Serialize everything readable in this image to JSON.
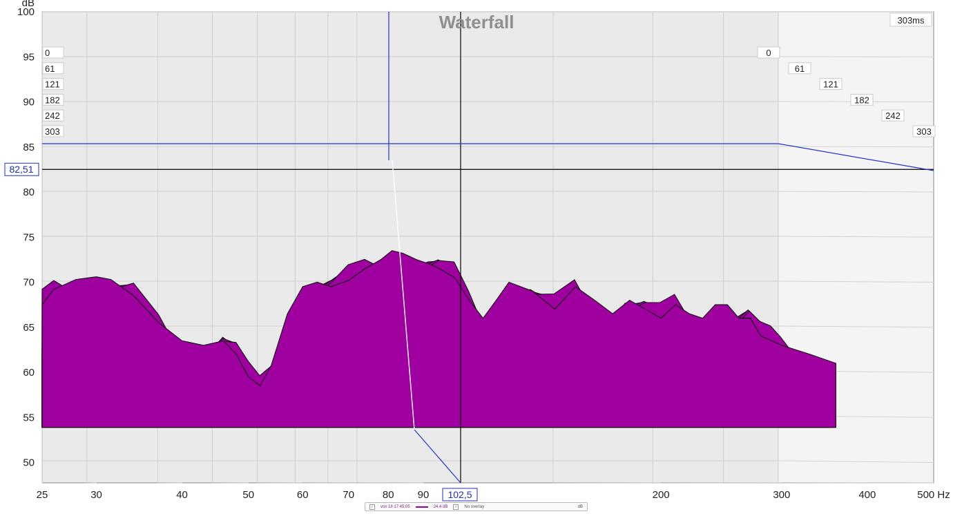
{
  "chart_data": {
    "type": "area",
    "title": "Waterfall",
    "ylabel": "dB",
    "xlabel": "Hz",
    "x_scale": "log",
    "xlim": [
      25,
      500
    ],
    "ylim": [
      47.5,
      100
    ],
    "x_ticks": [
      25,
      30,
      40,
      50,
      60,
      70,
      80,
      90,
      200,
      300,
      400,
      500
    ],
    "x_tick_labels": [
      "25",
      "30",
      "40",
      "50",
      "60",
      "70",
      "80",
      "90",
      "200",
      "300",
      "400",
      "500 Hz"
    ],
    "y_ticks": [
      50,
      55,
      60,
      65,
      70,
      75,
      80,
      85,
      90,
      95,
      100
    ],
    "z_label": "ms",
    "z_range_ms": [
      0,
      303
    ],
    "time_slices_ms": [
      0,
      61,
      121,
      182,
      242,
      303
    ],
    "time_top_label": "303ms",
    "fill_color": "#a000a0",
    "line_color": "#111111",
    "grid": true,
    "slice_count": 40,
    "series": [
      {
        "x": [
          25,
          26,
          28,
          30,
          31.5,
          34,
          37,
          40,
          43,
          46,
          48,
          50,
          52,
          54,
          57,
          60,
          63,
          66,
          70,
          74,
          78,
          81,
          84,
          88,
          92,
          95,
          100,
          105,
          110,
          115,
          120,
          130,
          140,
          150,
          160,
          170,
          180,
          190,
          200,
          210,
          220,
          230,
          240,
          250,
          260,
          270,
          280,
          290,
          300,
          330,
          360
        ],
        "values": [
          67.5,
          69.2,
          70.3,
          70.6,
          70.3,
          68.5,
          65.5,
          63.5,
          63.0,
          63.5,
          62.0,
          59.5,
          58.5,
          60.8,
          66.5,
          69.5,
          70.0,
          69.5,
          70.2,
          71.5,
          72.5,
          73.5,
          73.2,
          72.5,
          72.0,
          71.5,
          70.5,
          68.0,
          66.0,
          68.0,
          70.0,
          69.0,
          67.0,
          69.5,
          68.0,
          66.5,
          68.0,
          67.0,
          66.0,
          67.5,
          66.5,
          66.0,
          67.5,
          67.5,
          66.0,
          66.0,
          64.0,
          63.5,
          63.0,
          62.0,
          61.0
        ]
      }
    ],
    "cursor": {
      "x_label": "102,5",
      "y_label": "82,51"
    }
  },
  "legend": {
    "checkbox": "✓",
    "measurement_name": "vox 18 17:45:05",
    "smoothing_value": "24,4 dB",
    "overlay_label": "No overlay",
    "unit": "dB",
    "series_color": "#a000a0"
  }
}
